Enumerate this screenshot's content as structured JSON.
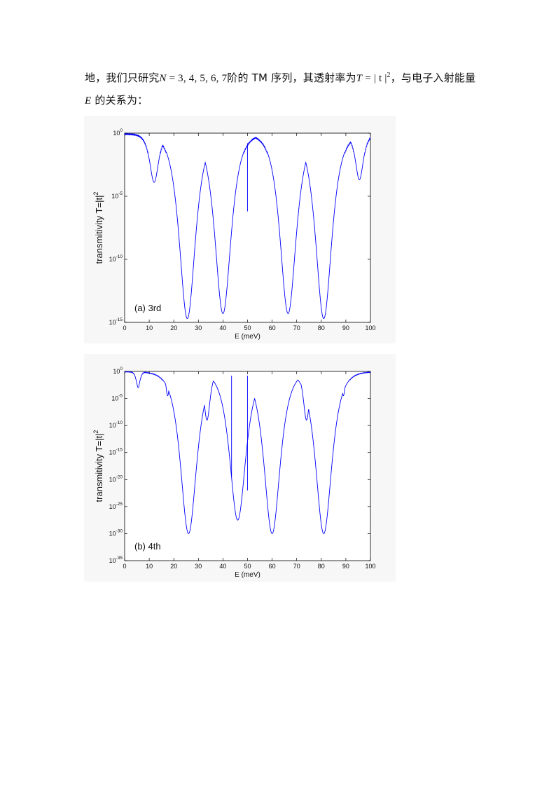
{
  "paragraph": {
    "part1": "地，我们只研究",
    "var_N": "N",
    "eq_N": " = 3, 4, 5, 6, 7",
    "part2": "阶的 TM 序列，其透射率为",
    "var_T": "T",
    "eq_T": " = | t |",
    "sup2": "2",
    "part3": "，与电子入射能量",
    "var_E": "E",
    "part4": " 的关系为："
  },
  "chart_data": [
    {
      "type": "line",
      "panel_label": "(a) 3rd",
      "xlabel": "E (meV)",
      "ylabel": "transmitivity  T=|t|",
      "ylabel_sup": "2",
      "xlim": [
        0,
        100
      ],
      "ylim_exponent": [
        -15,
        0
      ],
      "y_scale": "log",
      "x_ticks": [
        "0",
        "10",
        "20",
        "30",
        "40",
        "50",
        "60",
        "70",
        "80",
        "90",
        "100"
      ],
      "y_ticks": [
        {
          "base": "10",
          "exp": "0"
        },
        {
          "base": "10",
          "exp": "-5"
        },
        {
          "base": "10",
          "exp": "-10"
        },
        {
          "base": "10",
          "exp": "-15"
        }
      ],
      "line_color": "#0000ff",
      "series": [
        {
          "dips": [
            {
              "center": 12,
              "width": 2.0,
              "min_log": -3.9
            },
            {
              "center": 25.5,
              "width": 3.6,
              "min_log": -14.7
            },
            {
              "center": 40,
              "width": 3.6,
              "min_log": -14.3
            },
            {
              "center": 66.5,
              "width": 3.6,
              "min_log": -14.3
            },
            {
              "center": 81,
              "width": 3.6,
              "min_log": -14.7
            },
            {
              "center": 95.5,
              "width": 1.8,
              "min_log": -3.7
            }
          ],
          "spikes": [
            {
              "x": 50,
              "min_log": -6.2
            }
          ]
        }
      ]
    },
    {
      "type": "line",
      "panel_label": "(b) 4th",
      "xlabel": "E (meV)",
      "ylabel": "transmitivity  T=|t|",
      "ylabel_sup": "2",
      "xlim": [
        0,
        100
      ],
      "ylim_exponent": [
        -35,
        0
      ],
      "y_scale": "log",
      "x_ticks": [
        "0",
        "10",
        "20",
        "30",
        "40",
        "50",
        "60",
        "70",
        "80",
        "90",
        "100"
      ],
      "y_ticks": [
        {
          "base": "10",
          "exp": "0"
        },
        {
          "base": "10",
          "exp": "-5"
        },
        {
          "base": "10",
          "exp": "-10"
        },
        {
          "base": "10",
          "exp": "-15"
        },
        {
          "base": "10",
          "exp": "-20"
        },
        {
          "base": "10",
          "exp": "-25"
        },
        {
          "base": "10",
          "exp": "-30"
        },
        {
          "base": "10",
          "exp": "-35"
        }
      ],
      "line_color": "#0000ff",
      "series": [
        {
          "dips": [
            {
              "center": 5.5,
              "width": 0.8,
              "min_log": -3
            },
            {
              "center": 17.5,
              "width": 0.8,
              "min_log": -4.5
            },
            {
              "center": 26,
              "width": 3.6,
              "min_log": -30
            },
            {
              "center": 33.5,
              "width": 1.4,
              "min_log": -9
            },
            {
              "center": 46,
              "width": 3.6,
              "min_log": -27.5
            },
            {
              "center": 60,
              "width": 3.6,
              "min_log": -30
            },
            {
              "center": 74,
              "width": 1.4,
              "min_log": -9
            },
            {
              "center": 81,
              "width": 3.6,
              "min_log": -30
            },
            {
              "center": 89,
              "width": 0.8,
              "min_log": -4.5
            }
          ],
          "spikes": [
            {
              "x": 43.5,
              "min_log": -19.5
            },
            {
              "x": 50,
              "min_log": -22
            }
          ]
        }
      ]
    }
  ]
}
